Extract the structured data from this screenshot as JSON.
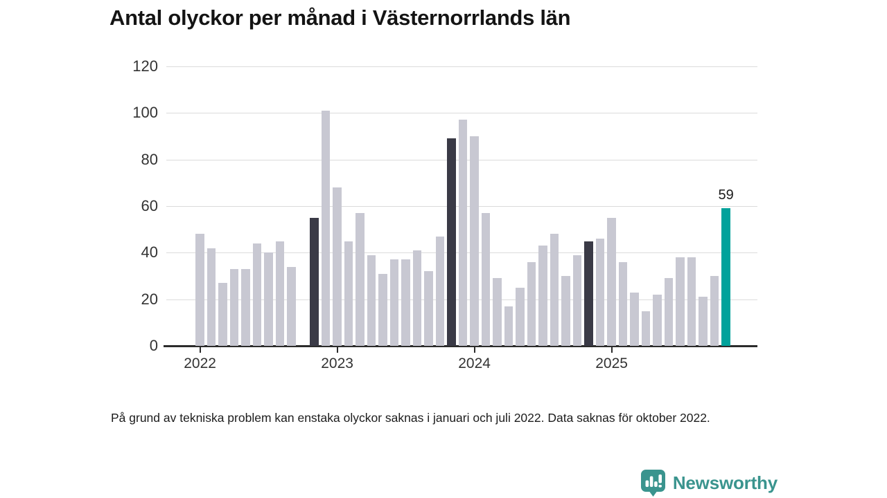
{
  "header": {
    "title": "Antal olyckor per månad i Västernorrlands län"
  },
  "chart_data": {
    "type": "bar",
    "title": "Antal olyckor per månad i Västernorrlands län",
    "xlabel": "",
    "ylabel": "",
    "ylim": [
      0,
      120
    ],
    "y_ticks": [
      0,
      20,
      40,
      60,
      80,
      100,
      120
    ],
    "x_tick_labels": [
      "2022",
      "2023",
      "2024",
      "2025"
    ],
    "grid": true,
    "legend": false,
    "categories_note": "monthly values Jan-Dec per year; null = missing month",
    "series": [
      {
        "year": "2022",
        "values": [
          48,
          42,
          27,
          33,
          33,
          44,
          40,
          45,
          34,
          null,
          55,
          101
        ]
      },
      {
        "year": "2023",
        "values": [
          68,
          45,
          57,
          39,
          31,
          37,
          37,
          41,
          32,
          47,
          89,
          97
        ]
      },
      {
        "year": "2024",
        "values": [
          90,
          57,
          29,
          17,
          25,
          36,
          43,
          48,
          30,
          39,
          45,
          46
        ]
      },
      {
        "year": "2025",
        "values": [
          55,
          36,
          23,
          15,
          22,
          29,
          38,
          38,
          21,
          30,
          59
        ]
      }
    ],
    "missing_months": [
      "2022-10"
    ],
    "highlight": {
      "dark_months": [
        "2022-11",
        "2023-11",
        "2024-11"
      ],
      "accent_month": "2025-11",
      "accent_label": "59"
    },
    "colors": {
      "bar": "#c8c8d2",
      "dark_bar": "#3a3a46",
      "accent_bar": "#00a29b",
      "grid": "#dbdbdb",
      "axis": "#2b2b2b"
    }
  },
  "footnote": {
    "text": "På grund av tekniska problem kan enstaka olyckor saknas i januari och juli 2022. Data saknas för oktober 2022."
  },
  "logo": {
    "text": "Newsworthy",
    "color": "#3a948e"
  }
}
